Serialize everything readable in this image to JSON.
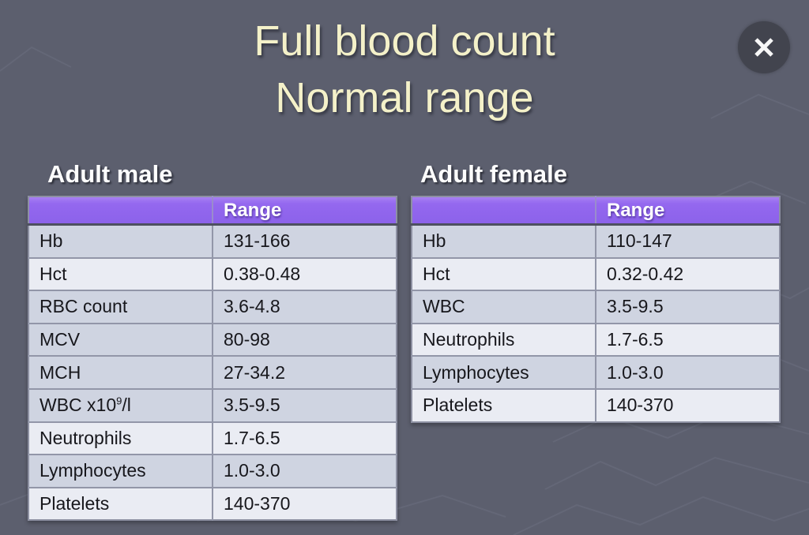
{
  "title": {
    "line1": "Full blood count",
    "line2": "Normal range"
  },
  "close_button": {
    "icon": "close-icon",
    "glyph": "✕"
  },
  "tables": [
    {
      "heading": "Adult male",
      "columns": {
        "parameter": "",
        "range": "Range"
      },
      "rows": [
        {
          "label": "Hb",
          "sup": "",
          "suffix": "",
          "range": "131-166",
          "shade": "dark"
        },
        {
          "label": "Hct",
          "sup": "",
          "suffix": "",
          "range": "0.38-0.48",
          "shade": "light"
        },
        {
          "label": "RBC count",
          "sup": "",
          "suffix": "",
          "range": "3.6-4.8",
          "shade": "dark"
        },
        {
          "label": "MCV",
          "sup": "",
          "suffix": "",
          "range": "80-98",
          "shade": "dark"
        },
        {
          "label": "MCH",
          "sup": "",
          "suffix": "",
          "range": "27-34.2",
          "shade": "dark"
        },
        {
          "label": "WBC x10",
          "sup": "9",
          "suffix": "/l",
          "range": "3.5-9.5",
          "shade": "dark"
        },
        {
          "label": "Neutrophils",
          "sup": "",
          "suffix": "",
          "range": "1.7-6.5",
          "shade": "light"
        },
        {
          "label": "Lymphocytes",
          "sup": "",
          "suffix": "",
          "range": "1.0-3.0",
          "shade": "dark"
        },
        {
          "label": "Platelets",
          "sup": "",
          "suffix": "",
          "range": "140-370",
          "shade": "light"
        }
      ]
    },
    {
      "heading": "Adult female",
      "columns": {
        "parameter": "",
        "range": "Range"
      },
      "rows": [
        {
          "label": "Hb",
          "sup": "",
          "suffix": "",
          "range": "110-147",
          "shade": "dark"
        },
        {
          "label": "Hct",
          "sup": "",
          "suffix": "",
          "range": "0.32-0.42",
          "shade": "light"
        },
        {
          "label": "WBC",
          "sup": "",
          "suffix": "",
          "range": "3.5-9.5",
          "shade": "dark"
        },
        {
          "label": "Neutrophils",
          "sup": "",
          "suffix": "",
          "range": "1.7-6.5",
          "shade": "light"
        },
        {
          "label": "Lymphocytes",
          "sup": "",
          "suffix": "",
          "range": "1.0-3.0",
          "shade": "dark"
        },
        {
          "label": "Platelets",
          "sup": "",
          "suffix": "",
          "range": "140-370",
          "shade": "light"
        }
      ]
    }
  ],
  "colors": {
    "background": "#5c5f6e",
    "header_purple": "#9166ee",
    "row_dark": "#cfd4e1",
    "row_light": "#eaecf3",
    "title_text": "#f4f1c9",
    "close_button_bg": "#42444e"
  }
}
